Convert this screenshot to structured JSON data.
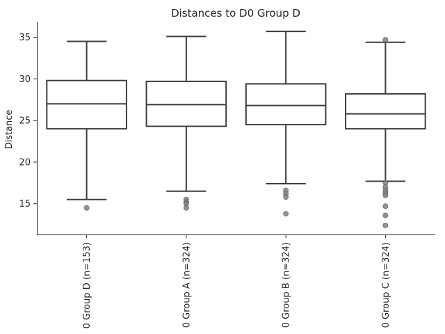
{
  "chart_data": {
    "type": "box",
    "title": "Distances to D0 Group D",
    "xlabel": "",
    "ylabel": "Distance",
    "ylim": [
      11.3,
      36.8
    ],
    "yticks": [
      15,
      20,
      25,
      30,
      35
    ],
    "grid": false,
    "legend": "none",
    "colors": {
      "box_line": "#3d3d3d",
      "outlier": "#808080",
      "axis": "#262626"
    },
    "categories": [
      "0 Group D (n=153)",
      "0 Group A (n=324)",
      "0 Group B (n=324)",
      "0 Group C (n=324)"
    ],
    "boxes": [
      {
        "category": "0 Group D (n=153)",
        "whisker_low": 15.5,
        "q1": 24.0,
        "median": 27.0,
        "q3": 29.8,
        "whisker_high": 34.5,
        "outliers": [
          14.5
        ]
      },
      {
        "category": "0 Group A (n=324)",
        "whisker_low": 16.5,
        "q1": 24.3,
        "median": 26.9,
        "q3": 29.7,
        "whisker_high": 35.1,
        "outliers": [
          15.5,
          15.2,
          15.0,
          14.5
        ]
      },
      {
        "category": "0 Group B (n=324)",
        "whisker_low": 17.4,
        "q1": 24.5,
        "median": 26.8,
        "q3": 29.4,
        "whisker_high": 35.7,
        "outliers": [
          16.6,
          16.2,
          15.8,
          13.8
        ]
      },
      {
        "category": "0 Group C (n=324)",
        "whisker_low": 17.7,
        "q1": 24.0,
        "median": 25.8,
        "q3": 28.2,
        "whisker_high": 34.4,
        "outliers": [
          34.7,
          17.5,
          17.0,
          16.6,
          16.3,
          16.0,
          14.7,
          13.6,
          12.4
        ]
      }
    ]
  }
}
